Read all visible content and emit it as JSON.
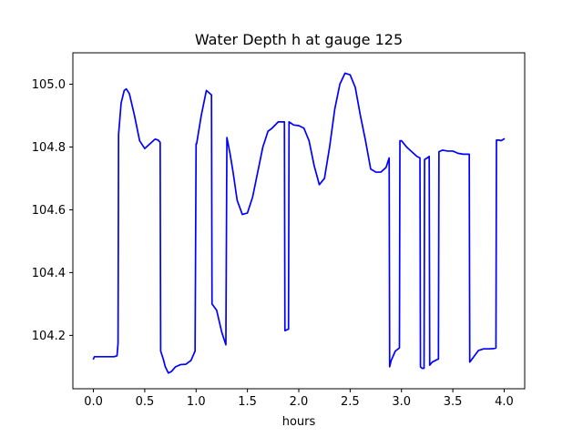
{
  "chart_data": {
    "type": "line",
    "title": "Water Depth h at gauge 125",
    "xlabel": "hours",
    "ylabel": "",
    "xlim": [
      -0.2,
      4.2
    ],
    "ylim": [
      104.03,
      105.1
    ],
    "grid": false,
    "x_ticks": [
      0.0,
      0.5,
      1.0,
      1.5,
      2.0,
      2.5,
      3.0,
      3.5,
      4.0
    ],
    "x_tick_labels": [
      "0.0",
      "0.5",
      "1.0",
      "1.5",
      "2.0",
      "2.5",
      "3.0",
      "3.5",
      "4.0"
    ],
    "y_ticks": [
      104.2,
      104.4,
      104.6,
      104.8,
      105.0
    ],
    "y_tick_labels": [
      "104.2",
      "104.4",
      "104.6",
      "104.8",
      "105.0"
    ],
    "series": [
      {
        "color": "#0000ff",
        "x": [
          0.0,
          0.01,
          0.1,
          0.2,
          0.23,
          0.24,
          0.245,
          0.27,
          0.3,
          0.32,
          0.35,
          0.4,
          0.45,
          0.5,
          0.55,
          0.6,
          0.63,
          0.65,
          0.655,
          0.68,
          0.7,
          0.73,
          0.76,
          0.8,
          0.85,
          0.9,
          0.95,
          0.99,
          1.0,
          1.005,
          1.05,
          1.1,
          1.15,
          1.155,
          1.2,
          1.25,
          1.29,
          1.3,
          1.33,
          1.36,
          1.4,
          1.45,
          1.5,
          1.55,
          1.6,
          1.65,
          1.7,
          1.74,
          1.8,
          1.85,
          1.86,
          1.865,
          1.9,
          1.905,
          1.95,
          2.0,
          2.05,
          2.1,
          2.15,
          2.2,
          2.25,
          2.3,
          2.35,
          2.4,
          2.45,
          2.5,
          2.55,
          2.6,
          2.65,
          2.7,
          2.75,
          2.8,
          2.85,
          2.88,
          2.885,
          2.9,
          2.94,
          2.98,
          2.985,
          3.0,
          3.05,
          3.1,
          3.15,
          3.18,
          3.185,
          3.2,
          3.22,
          3.225,
          3.25,
          3.27,
          3.275,
          3.3,
          3.36,
          3.365,
          3.4,
          3.45,
          3.5,
          3.55,
          3.6,
          3.66,
          3.665,
          3.7,
          3.75,
          3.8,
          3.85,
          3.9,
          3.92,
          3.925,
          3.95,
          3.97,
          4.0
        ],
        "y": [
          104.125,
          104.132,
          104.132,
          104.132,
          104.135,
          104.175,
          104.84,
          104.94,
          104.98,
          104.985,
          104.97,
          104.9,
          104.82,
          104.795,
          104.81,
          104.825,
          104.822,
          104.815,
          104.15,
          104.125,
          104.1,
          104.08,
          104.085,
          104.1,
          104.107,
          104.108,
          104.12,
          104.15,
          104.81,
          104.81,
          104.9,
          104.98,
          104.966,
          104.3,
          104.28,
          104.21,
          104.17,
          104.83,
          104.78,
          104.72,
          104.63,
          104.585,
          104.59,
          104.64,
          104.72,
          104.8,
          104.85,
          104.86,
          104.88,
          104.88,
          104.88,
          104.215,
          104.22,
          104.88,
          104.87,
          104.868,
          104.86,
          104.82,
          104.74,
          104.68,
          104.7,
          104.8,
          104.92,
          105.0,
          105.035,
          105.03,
          104.99,
          104.9,
          104.82,
          104.73,
          104.72,
          104.72,
          104.735,
          104.765,
          104.1,
          104.12,
          104.15,
          104.16,
          104.82,
          104.82,
          104.8,
          104.785,
          104.77,
          104.765,
          104.1,
          104.095,
          104.095,
          104.76,
          104.765,
          104.77,
          104.105,
          104.115,
          104.125,
          104.785,
          104.79,
          104.787,
          104.787,
          104.78,
          104.777,
          104.777,
          104.115,
          104.13,
          104.152,
          104.157,
          104.157,
          104.158,
          104.16,
          104.822,
          104.822,
          104.82,
          104.826
        ]
      }
    ]
  }
}
